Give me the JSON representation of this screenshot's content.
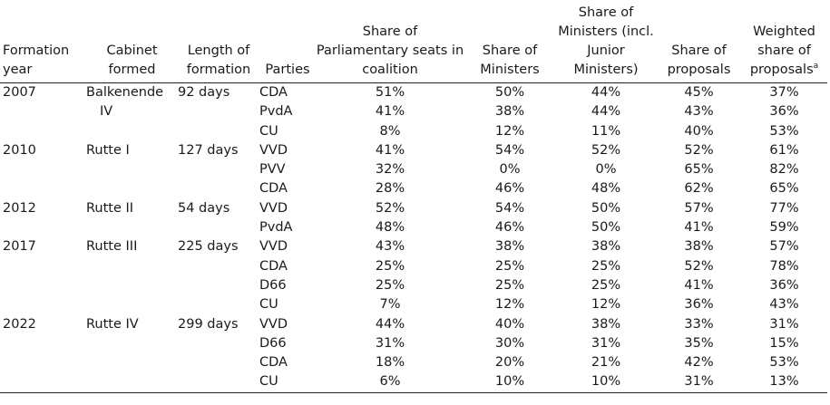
{
  "headers": {
    "formation_year": "Formation year",
    "cabinet": "Cabinet formed",
    "length": "Length of formation",
    "parties": "Parties",
    "seats": "Share of Parliamentary seats in coalition",
    "ministers": "Share of Ministers",
    "ministers_junior": "Share of Ministers (incl. Junior Ministers)",
    "proposals": "Share of proposals",
    "weighted": "Weighted share of proposals",
    "weighted_note": "a"
  },
  "cabinets": [
    {
      "year": "2007",
      "cabinet_line1": "Balkenende",
      "cabinet_line2": "IV",
      "length": "92 days",
      "parties": [
        {
          "party": "CDA",
          "seats": "51%",
          "ministers": "50%",
          "ministers_junior": "44%",
          "proposals": "45%",
          "weighted": "37%"
        },
        {
          "party": "PvdA",
          "seats": "41%",
          "ministers": "38%",
          "ministers_junior": "44%",
          "proposals": "43%",
          "weighted": "36%"
        },
        {
          "party": "CU",
          "seats": "8%",
          "ministers": "12%",
          "ministers_junior": "11%",
          "proposals": "40%",
          "weighted": "53%"
        }
      ]
    },
    {
      "year": "2010",
      "cabinet_line1": "Rutte I",
      "cabinet_line2": "",
      "length": "127 days",
      "parties": [
        {
          "party": "VVD",
          "seats": "41%",
          "ministers": "54%",
          "ministers_junior": "52%",
          "proposals": "52%",
          "weighted": "61%"
        },
        {
          "party": "PVV",
          "seats": "32%",
          "ministers": "0%",
          "ministers_junior": "0%",
          "proposals": "65%",
          "weighted": "82%"
        },
        {
          "party": "CDA",
          "seats": "28%",
          "ministers": "46%",
          "ministers_junior": "48%",
          "proposals": "62%",
          "weighted": "65%"
        }
      ]
    },
    {
      "year": "2012",
      "cabinet_line1": "Rutte II",
      "cabinet_line2": "",
      "length": "54 days",
      "parties": [
        {
          "party": "VVD",
          "seats": "52%",
          "ministers": "54%",
          "ministers_junior": "50%",
          "proposals": "57%",
          "weighted": "77%"
        },
        {
          "party": "PvdA",
          "seats": "48%",
          "ministers": "46%",
          "ministers_junior": "50%",
          "proposals": "41%",
          "weighted": "59%"
        }
      ]
    },
    {
      "year": "2017",
      "cabinet_line1": "Rutte III",
      "cabinet_line2": "",
      "length": "225 days",
      "parties": [
        {
          "party": "VVD",
          "seats": "43%",
          "ministers": "38%",
          "ministers_junior": "38%",
          "proposals": "38%",
          "weighted": "57%"
        },
        {
          "party": "CDA",
          "seats": "25%",
          "ministers": "25%",
          "ministers_junior": "25%",
          "proposals": "52%",
          "weighted": "78%"
        },
        {
          "party": "D66",
          "seats": "25%",
          "ministers": "25%",
          "ministers_junior": "25%",
          "proposals": "41%",
          "weighted": "36%"
        },
        {
          "party": "CU",
          "seats": "7%",
          "ministers": "12%",
          "ministers_junior": "12%",
          "proposals": "36%",
          "weighted": "43%"
        }
      ]
    },
    {
      "year": "2022",
      "cabinet_line1": "Rutte IV",
      "cabinet_line2": "",
      "length": "299 days",
      "parties": [
        {
          "party": "VVD",
          "seats": "44%",
          "ministers": "40%",
          "ministers_junior": "38%",
          "proposals": "33%",
          "weighted": "31%"
        },
        {
          "party": "D66",
          "seats": "31%",
          "ministers": "30%",
          "ministers_junior": "31%",
          "proposals": "35%",
          "weighted": "15%"
        },
        {
          "party": "CDA",
          "seats": "18%",
          "ministers": "20%",
          "ministers_junior": "21%",
          "proposals": "42%",
          "weighted": "53%"
        },
        {
          "party": "CU",
          "seats": "6%",
          "ministers": "10%",
          "ministers_junior": "10%",
          "proposals": "31%",
          "weighted": "13%"
        }
      ]
    }
  ]
}
